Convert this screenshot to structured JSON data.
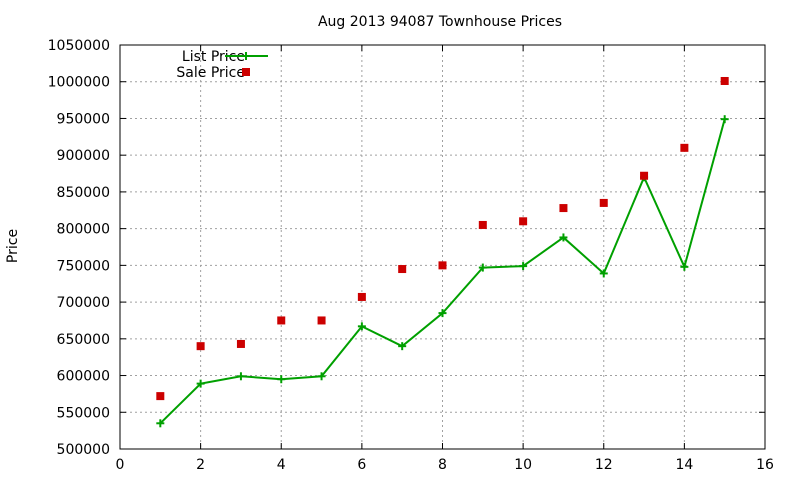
{
  "chart_data": {
    "type": "line",
    "title": "Aug 2013 94087 Townhouse Prices",
    "xlabel": "",
    "ylabel": "Price",
    "xlim": [
      0,
      16
    ],
    "ylim": [
      500000,
      1050000
    ],
    "xticks": [
      "0",
      "2",
      "4",
      "6",
      "8",
      "10",
      "12",
      "14",
      "16"
    ],
    "yticks": [
      "500000",
      "550000",
      "600000",
      "650000",
      "700000",
      "750000",
      "800000",
      "850000",
      "900000",
      "950000",
      "1000000",
      "1050000"
    ],
    "grid": true,
    "legend_position": "top-left",
    "series": [
      {
        "name": "List Price",
        "style": "linespoints",
        "color": "#00a000",
        "x": [
          1,
          2,
          3,
          4,
          5,
          6,
          7,
          8,
          9,
          10,
          11,
          12,
          13,
          14,
          15
        ],
        "y": [
          535000,
          589000,
          599000,
          595000,
          599000,
          667000,
          640000,
          685000,
          747000,
          749000,
          788000,
          739000,
          870000,
          748000,
          949000
        ]
      },
      {
        "name": "Sale Price",
        "style": "points",
        "color": "#cc0000",
        "x": [
          1,
          2,
          3,
          4,
          5,
          6,
          7,
          8,
          9,
          10,
          11,
          12,
          13,
          14,
          15
        ],
        "y": [
          572000,
          640000,
          643000,
          675000,
          675000,
          707000,
          745000,
          750000,
          805000,
          810000,
          828000,
          835000,
          872000,
          910000,
          1001000
        ]
      }
    ]
  }
}
